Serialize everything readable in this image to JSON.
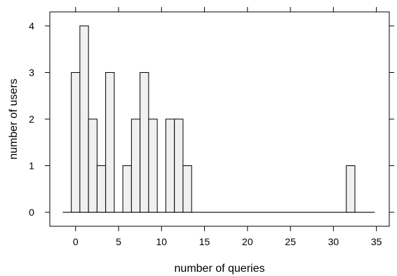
{
  "chart_data": {
    "type": "bar",
    "title": "",
    "xlabel": "number of queries",
    "ylabel": "number of users",
    "bin_width": 1,
    "bins": [
      {
        "x0": -0.5,
        "x1": 0.5,
        "count": 3
      },
      {
        "x0": 0.5,
        "x1": 1.5,
        "count": 4
      },
      {
        "x0": 1.5,
        "x1": 2.5,
        "count": 2
      },
      {
        "x0": 2.5,
        "x1": 3.5,
        "count": 1
      },
      {
        "x0": 3.5,
        "x1": 4.5,
        "count": 3
      },
      {
        "x0": 5.5,
        "x1": 6.5,
        "count": 1
      },
      {
        "x0": 6.5,
        "x1": 7.5,
        "count": 2
      },
      {
        "x0": 7.5,
        "x1": 8.5,
        "count": 3
      },
      {
        "x0": 8.5,
        "x1": 9.5,
        "count": 2
      },
      {
        "x0": 10.5,
        "x1": 11.5,
        "count": 2
      },
      {
        "x0": 11.5,
        "x1": 12.5,
        "count": 2
      },
      {
        "x0": 12.5,
        "x1": 13.5,
        "count": 1
      },
      {
        "x0": 31.5,
        "x1": 32.5,
        "count": 1
      }
    ],
    "xlim": [
      -3,
      36.5
    ],
    "ylim": [
      -0.3,
      4.3
    ],
    "xticks": [
      0,
      5,
      10,
      15,
      20,
      25,
      30,
      35
    ],
    "yticks": [
      0,
      1,
      2,
      3,
      4
    ],
    "baseline": [
      -1.5,
      34.8
    ],
    "bar_fill": "#f0f0f0",
    "bar_stroke": "#000000",
    "grid": false,
    "legend": "none"
  }
}
